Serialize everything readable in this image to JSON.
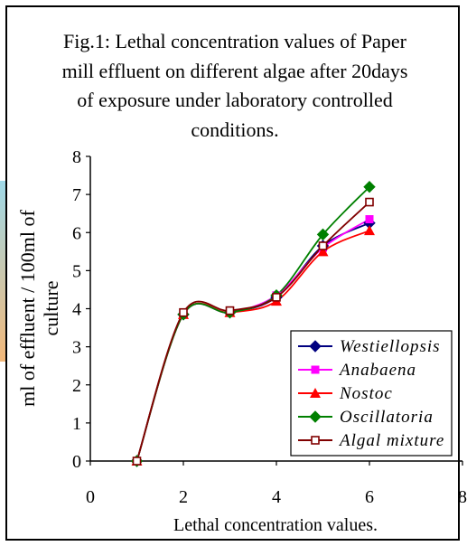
{
  "chart_data": {
    "type": "line",
    "title": "Fig.1: Lethal concentration values of Paper mill effluent on different algae after 20days of exposure under laboratory controlled conditions.",
    "title_lines": [
      "Fig.1: Lethal concentration values of Paper",
      "mill effluent on different algae after 20days",
      "of exposure under laboratory controlled",
      "conditions."
    ],
    "xlabel": "Lethal concentration values.",
    "ylabel": "ml of effluent / 100ml of culture",
    "ylabel_lines": [
      "ml of effluent / 100ml of",
      "culture"
    ],
    "xlim": [
      0,
      8
    ],
    "ylim": [
      0,
      8
    ],
    "xticks": [
      0,
      2,
      4,
      6,
      8
    ],
    "yticks": [
      0,
      1,
      2,
      3,
      4,
      5,
      6,
      7,
      8
    ],
    "grid": false,
    "legend_position": "bottom-right",
    "x": [
      1,
      2,
      3,
      4,
      5,
      6
    ],
    "series": [
      {
        "name": "Westiellopsis",
        "values": [
          0,
          3.85,
          3.9,
          4.3,
          5.65,
          6.25
        ],
        "color": "#000080",
        "marker": "diamond"
      },
      {
        "name": "Anabaena",
        "values": [
          0,
          3.85,
          3.9,
          4.35,
          5.6,
          6.35
        ],
        "color": "#ff00ff",
        "marker": "square"
      },
      {
        "name": "Nostoc",
        "values": [
          0,
          3.85,
          3.9,
          4.2,
          5.5,
          6.05
        ],
        "color": "#ff0000",
        "marker": "triangle"
      },
      {
        "name": "Oscillatoria",
        "values": [
          0,
          3.85,
          3.9,
          4.35,
          5.95,
          7.2
        ],
        "color": "#008000",
        "marker": "diamond"
      },
      {
        "name": "Algal mixture",
        "values": [
          0,
          3.9,
          3.95,
          4.3,
          5.65,
          6.8
        ],
        "color": "#800000",
        "marker": "open-square"
      }
    ]
  }
}
